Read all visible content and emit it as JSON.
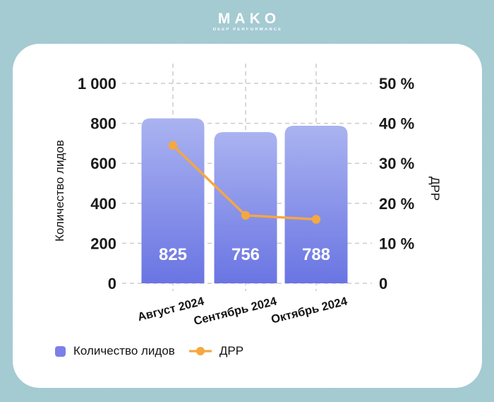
{
  "brand": {
    "name": "MAKO",
    "tagline": "DEEP PERFORMANCE"
  },
  "legend": {
    "items": [
      {
        "label": "Количество лидов",
        "swatch": "bar"
      },
      {
        "label": "ДРР",
        "swatch": "line"
      }
    ]
  },
  "chart_data": {
    "type": "bar",
    "subtype": "combo-bar-line",
    "categories": [
      "Август 2024",
      "Сентябрь 2024",
      "Октябрь 2024"
    ],
    "series": [
      {
        "name": "Количество лидов",
        "type": "bar",
        "axis": "left",
        "values": [
          825,
          756,
          788
        ],
        "data_labels": [
          "825",
          "756",
          "788"
        ]
      },
      {
        "name": "ДРР",
        "type": "line",
        "axis": "right",
        "values": [
          34.5,
          17,
          16
        ]
      }
    ],
    "left_axis": {
      "title": "Количество лидов",
      "min": 0,
      "max": 1000,
      "step": 200,
      "tick_labels": [
        "0",
        "200",
        "400",
        "600",
        "800",
        "1 000"
      ]
    },
    "right_axis": {
      "title": "ДРР",
      "min": 0,
      "max": 50,
      "step": 10,
      "tick_labels": [
        "0",
        "10 %",
        "20 %",
        "30 %",
        "40 %",
        "50 %"
      ]
    },
    "grid": {
      "horizontal": true,
      "vertical": true,
      "style": "dashed"
    },
    "legend_position": "bottom-left"
  },
  "colors": {
    "background": "#a4cbd3",
    "card": "#ffffff",
    "bar_gradient_top": "#aab3f0",
    "bar_gradient_bottom": "#6a75e3",
    "legend_bar_swatch": "#7b80e9",
    "line": "#f5a742",
    "grid": "#cccccc",
    "axis_text": "#1a1a1a",
    "category_text": "#141414",
    "bar_value_text": "#ffffff",
    "logo_text": "#ffffff"
  }
}
